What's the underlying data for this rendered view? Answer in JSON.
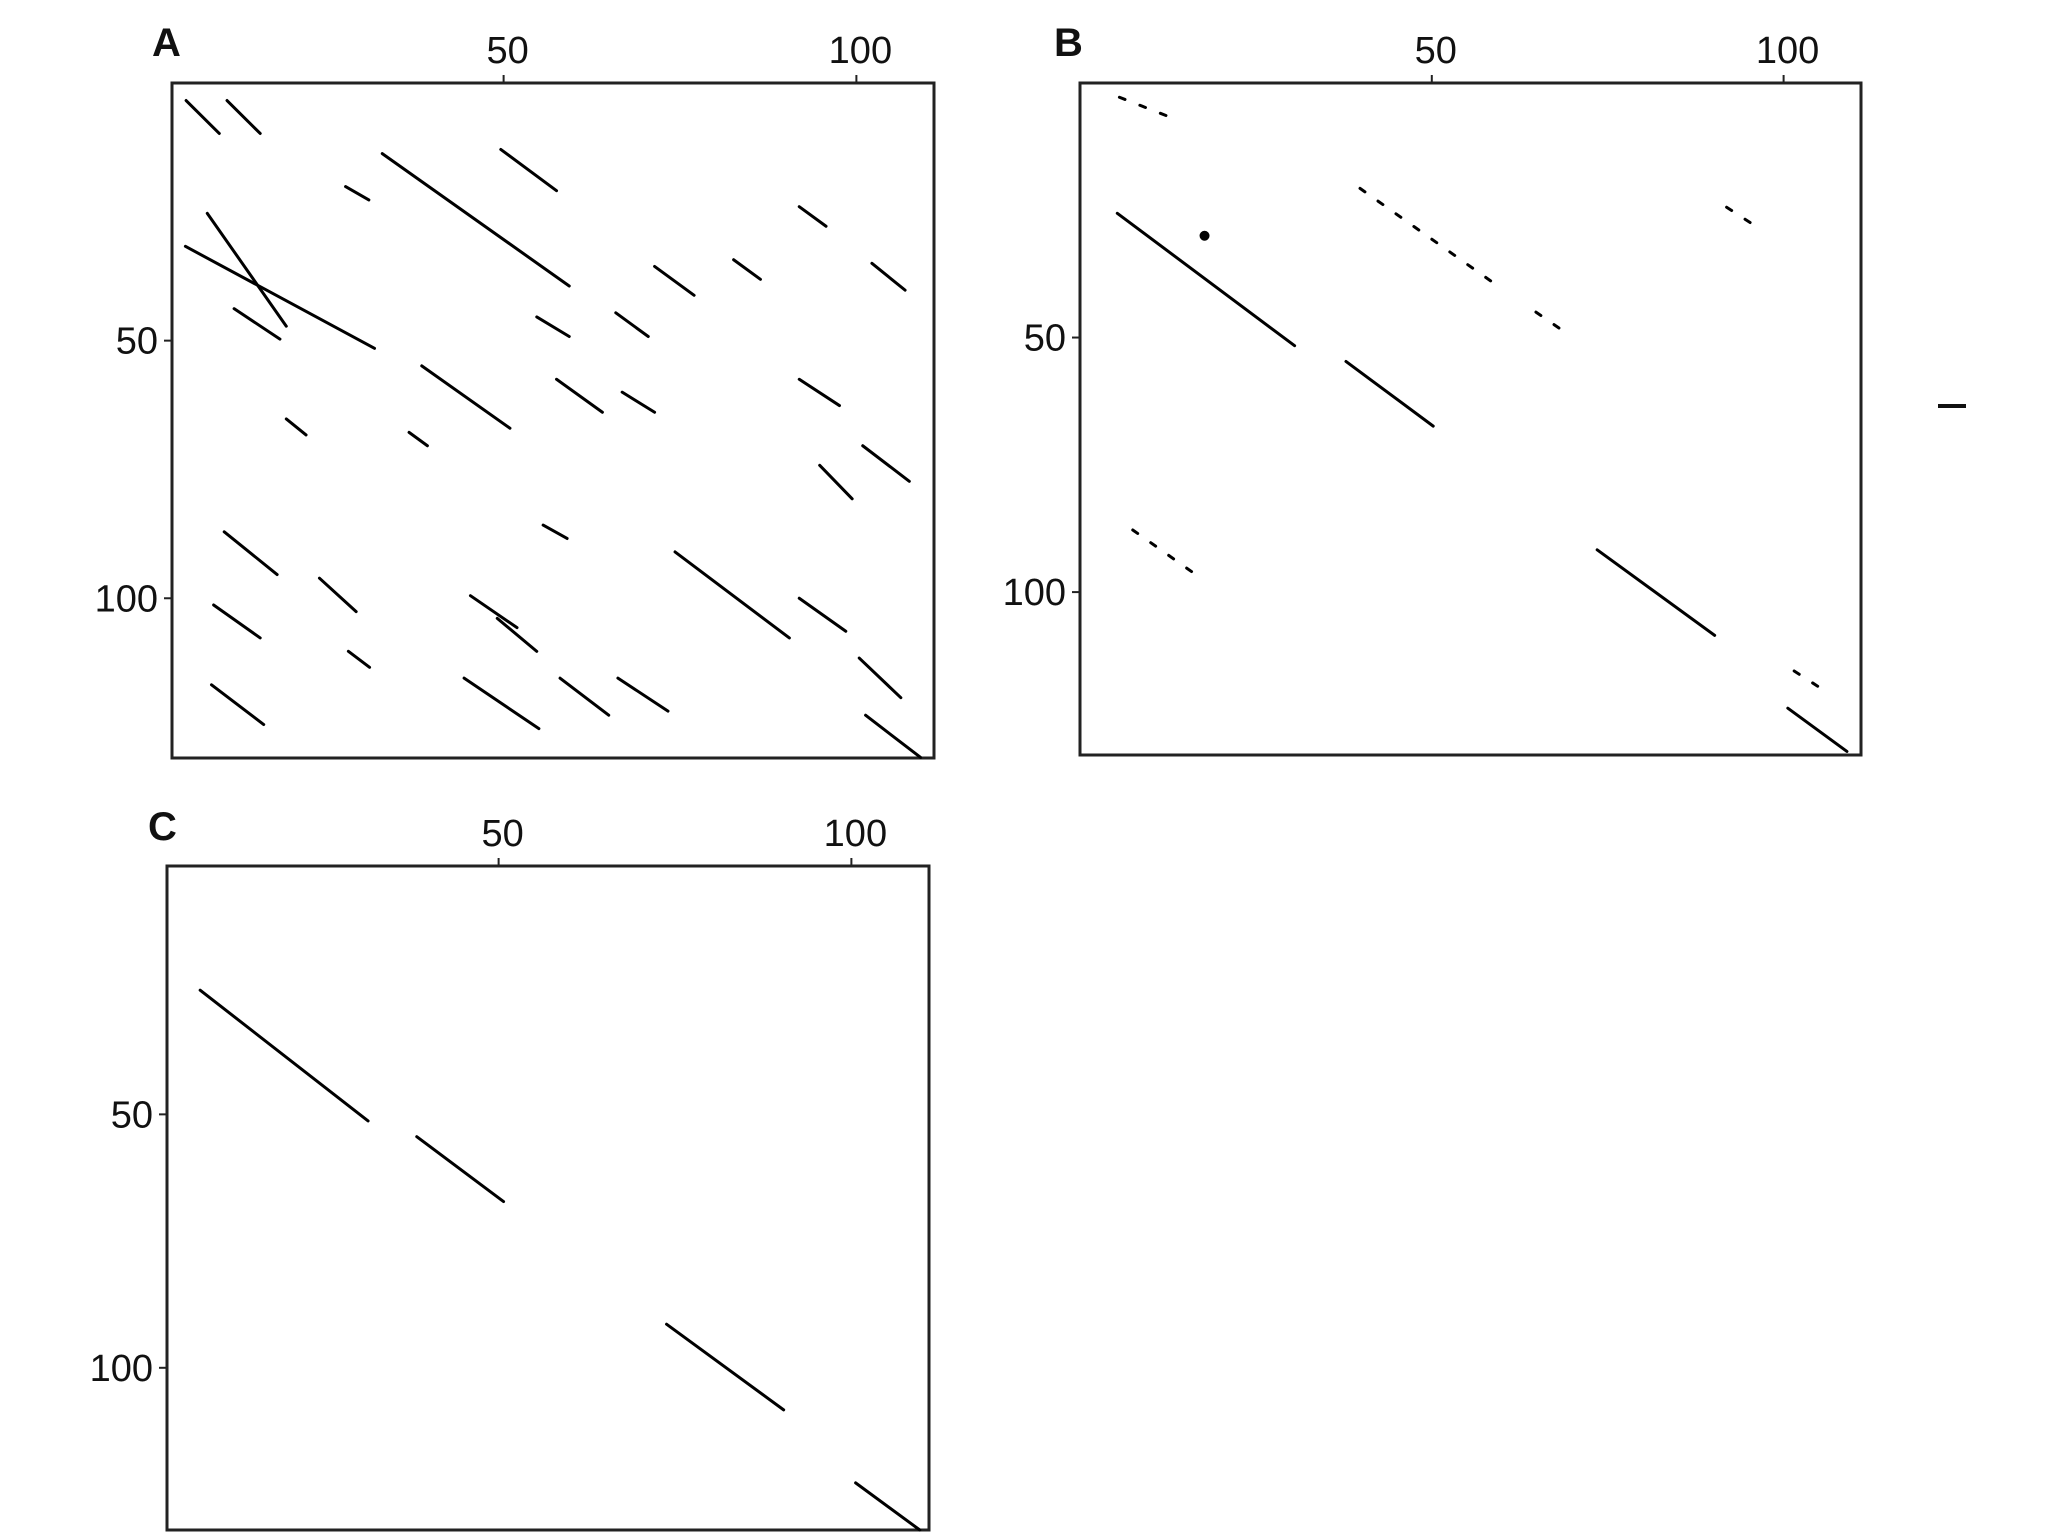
{
  "chart_data": [
    {
      "type": "dotplot",
      "label": "A",
      "xlim": [
        3,
        111
      ],
      "ylim": [
        0,
        131
      ],
      "xticks": [
        50,
        100
      ],
      "yticks": [
        50,
        100
      ],
      "color": "#000000",
      "segments": [
        {
          "x": [
            32.8,
            59.3
          ],
          "y": [
            13.7,
            39.4
          ]
        },
        {
          "x": [
            4.9,
            31.7
          ],
          "y": [
            31.7,
            51.5
          ]
        },
        {
          "x": [
            8,
            19.2
          ],
          "y": [
            25.3,
            47.2
          ]
        },
        {
          "x": [
            38.4,
            50.9
          ],
          "y": [
            54.9,
            67
          ]
        },
        {
          "x": [
            49.6,
            57.5
          ],
          "y": [
            12.9,
            20.9
          ]
        },
        {
          "x": [
            74.3,
            90.5
          ],
          "y": [
            91,
            107.7
          ]
        },
        {
          "x": [
            100.4,
            106.3
          ],
          "y": [
            111.6,
            119.3
          ]
        },
        {
          "x": [
            101.3,
            109.1
          ],
          "y": [
            122.7,
            130.9
          ]
        },
        {
          "x": [
            57.5,
            64
          ],
          "y": [
            57.5,
            63.9
          ]
        },
        {
          "x": [
            91.9,
            97.6
          ],
          "y": [
            57.5,
            62.6
          ]
        },
        {
          "x": [
            100.9,
            107.5
          ],
          "y": [
            70.4,
            77.3
          ]
        },
        {
          "x": [
            91.9,
            98.5
          ],
          "y": [
            100,
            106.4
          ]
        },
        {
          "x": [
            44.4,
            55
          ],
          "y": [
            115.5,
            125.3
          ]
        },
        {
          "x": [
            58,
            64.9
          ],
          "y": [
            115.5,
            122.7
          ]
        },
        {
          "x": [
            8.6,
            16
          ],
          "y": [
            116.8,
            124.5
          ]
        },
        {
          "x": [
            45.3,
            51.9
          ],
          "y": [
            99.5,
            105.7
          ]
        },
        {
          "x": [
            23.9,
            29.1
          ],
          "y": [
            96.1,
            102.6
          ]
        },
        {
          "x": [
            10.4,
            17.9
          ],
          "y": [
            87.1,
            95.4
          ]
        },
        {
          "x": [
            71.4,
            77
          ],
          "y": [
            35.6,
            41.2
          ]
        },
        {
          "x": [
            91.9,
            95.7
          ],
          "y": [
            24,
            27.8
          ]
        },
        {
          "x": [
            102.2,
            106.9
          ],
          "y": [
            35,
            40.2
          ]
        },
        {
          "x": [
            5,
            9.7
          ],
          "y": [
            3.4,
            9.8
          ]
        },
        {
          "x": [
            11.8,
            18.3
          ],
          "y": [
            43.8,
            49.7
          ]
        },
        {
          "x": [
            54.7,
            59.3
          ],
          "y": [
            45.4,
            49.2
          ]
        },
        {
          "x": [
            94.8,
            99.4
          ],
          "y": [
            74.2,
            80.7
          ]
        },
        {
          "x": [
            82.6,
            86.4
          ],
          "y": [
            34.3,
            38.1
          ]
        },
        {
          "x": [
            49.1,
            54.7
          ],
          "y": [
            103.9,
            110.3
          ]
        },
        {
          "x": [
            66.2,
            73.3
          ],
          "y": [
            115.5,
            121.9
          ]
        },
        {
          "x": [
            55.6,
            59
          ],
          "y": [
            85.8,
            88.4
          ]
        },
        {
          "x": [
            19.2,
            22
          ],
          "y": [
            65.2,
            68.3
          ]
        },
        {
          "x": [
            36.6,
            39.2
          ],
          "y": [
            67.8,
            70.4
          ]
        },
        {
          "x": [
            28,
            31
          ],
          "y": [
            110.3,
            113.4
          ]
        },
        {
          "x": [
            8.9,
            15.5
          ],
          "y": [
            101.3,
            107.7
          ]
        },
        {
          "x": [
            27.6,
            30.9
          ],
          "y": [
            20.1,
            22.7
          ]
        },
        {
          "x": [
            65.9,
            70.5
          ],
          "y": [
            44.6,
            49.2
          ]
        },
        {
          "x": [
            66.8,
            71.4
          ],
          "y": [
            60,
            63.9
          ]
        },
        {
          "x": [
            10.8,
            15.5
          ],
          "y": [
            3.4,
            9.8
          ]
        }
      ]
    },
    {
      "type": "dotplot",
      "label": "B",
      "xlim": [
        0,
        111
      ],
      "ylim": [
        0,
        132
      ],
      "xticks": [
        50,
        100
      ],
      "yticks": [
        50,
        100
      ],
      "color": "#000000",
      "segments": [
        {
          "x": [
            5.3,
            30.5
          ],
          "y": [
            25.6,
            51.6
          ]
        },
        {
          "x": [
            37.8,
            50.2
          ],
          "y": [
            54.7,
            67.4
          ]
        },
        {
          "x": [
            73.5,
            90.2
          ],
          "y": [
            91.7,
            108.5
          ]
        },
        {
          "x": [
            100.6,
            109
          ],
          "y": [
            122.8,
            131.3
          ]
        },
        {
          "x": [
            39.8,
            58.6
          ],
          "y": [
            20.7,
            39.1
          ],
          "dashed": true
        },
        {
          "x": [
            64.8,
            69.5
          ],
          "y": [
            45,
            49.5
          ],
          "dashed": true
        },
        {
          "x": [
            7.5,
            16.5
          ],
          "y": [
            87.8,
            96.6
          ],
          "dashed": true
        },
        {
          "x": [
            5.6,
            13.9
          ],
          "y": [
            2.8,
            7.3
          ],
          "dashed": true
        },
        {
          "x": [
            91.9,
            95.9
          ],
          "y": [
            24.4,
            28
          ],
          "dashed": true
        },
        {
          "x": [
            101.5,
            106.2
          ],
          "y": [
            115.5,
            119.7
          ],
          "dashed": true
        }
      ],
      "points": [
        {
          "x": 17.7,
          "y": 30
        }
      ]
    },
    {
      "type": "dotplot",
      "label": "C",
      "xlim": [
        3,
        111
      ],
      "ylim": [
        1,
        132
      ],
      "xticks": [
        50,
        100
      ],
      "yticks": [
        50,
        100
      ],
      "color": "#000000",
      "segments": [
        {
          "x": [
            7.7,
            31.5
          ],
          "y": [
            25.5,
            51.3
          ]
        },
        {
          "x": [
            38.4,
            50.7
          ],
          "y": [
            54.4,
            67.2
          ]
        },
        {
          "x": [
            73.8,
            90.4
          ],
          "y": [
            91.4,
            108.3
          ]
        },
        {
          "x": [
            100.6,
            109.7
          ],
          "y": [
            122.7,
            132
          ]
        }
      ]
    }
  ]
}
